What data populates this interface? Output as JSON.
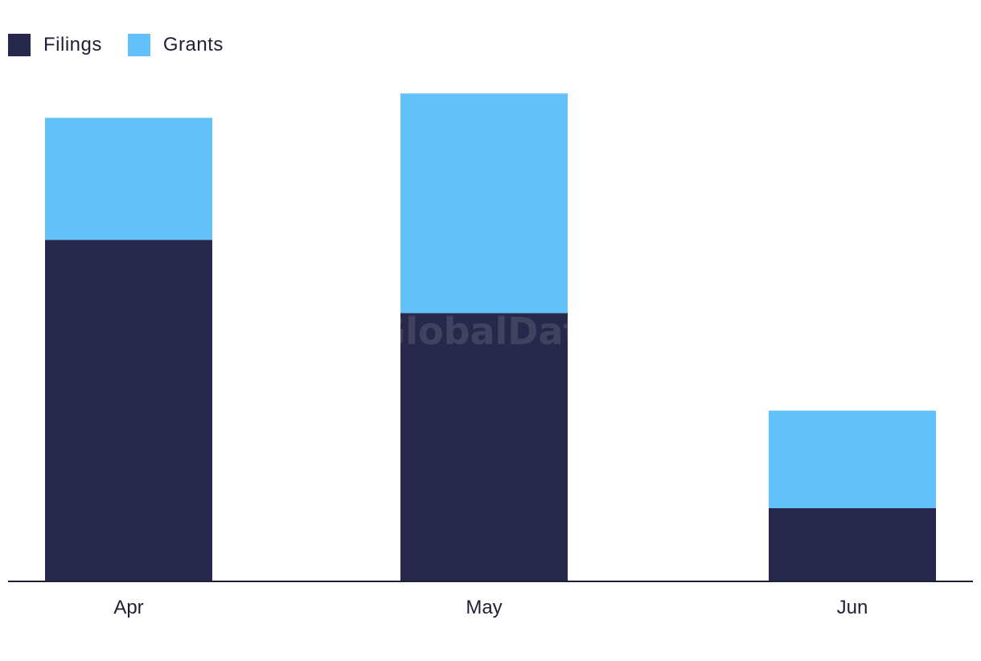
{
  "chart_data": {
    "type": "bar",
    "stacked": true,
    "categories": [
      "Apr",
      "May",
      "Jun"
    ],
    "series": [
      {
        "name": "Filings",
        "values": [
          42,
          33,
          9
        ],
        "color": "#27284b"
      },
      {
        "name": "Grants",
        "values": [
          15,
          27,
          12
        ],
        "color": "#63c1fa"
      }
    ],
    "ylim": [
      0,
      62
    ],
    "grid": false,
    "legend": "top-left",
    "watermark": "GlobalData"
  }
}
